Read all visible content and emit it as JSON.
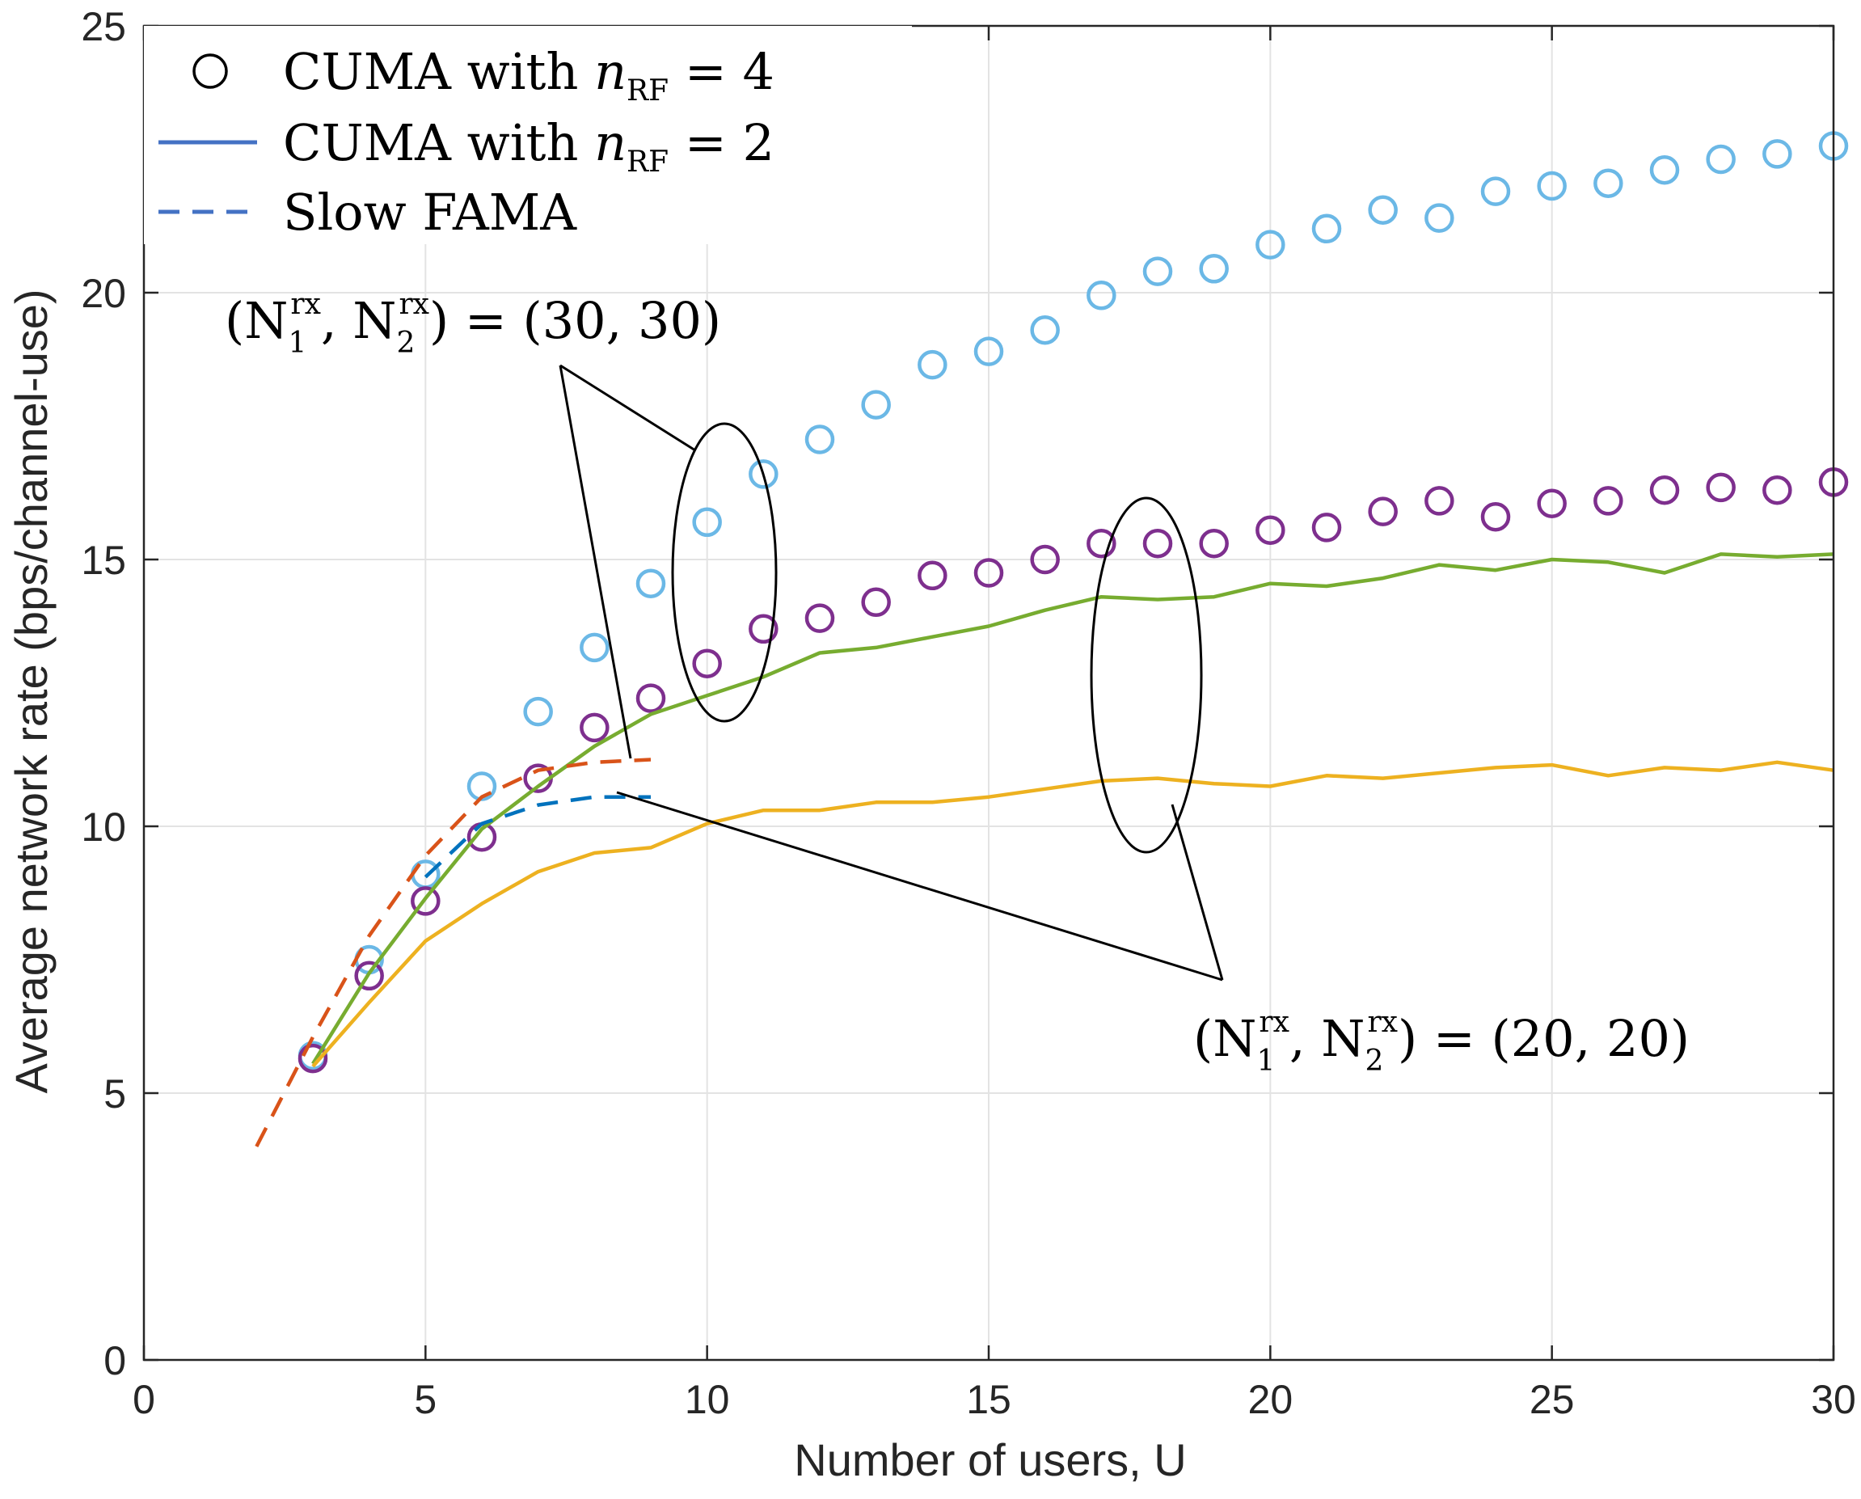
{
  "chart_data": {
    "type": "line",
    "xlabel": "Number of users, U",
    "ylabel": "Average network rate (bps/channel-use)",
    "xlim": [
      0,
      30
    ],
    "ylim": [
      0,
      25
    ],
    "xticks": [
      "0",
      "5",
      "10",
      "15",
      "20",
      "25",
      "30"
    ],
    "yticks": [
      "0",
      "5",
      "10",
      "15",
      "20",
      "25"
    ],
    "grid": true,
    "legend_position": "top-left",
    "legend": [
      {
        "label_main": "CUMA with ",
        "label_var": "n",
        "label_sub": "RF",
        "label_tail": " = 4",
        "marker": "circle",
        "color": "#000000"
      },
      {
        "label_main": "CUMA with ",
        "label_var": "n",
        "label_sub": "RF",
        "label_tail": " = 2",
        "marker": "solid-line",
        "color": "#4472C4"
      },
      {
        "label_main": "Slow FAMA",
        "label_var": "",
        "label_sub": "",
        "label_tail": "",
        "marker": "dashed-line",
        "color": "#4472C4"
      }
    ],
    "annotations": [
      {
        "text_open": "(N",
        "sub1": "1",
        "sup1": "rx",
        "text_mid": ", N",
        "sub2": "2",
        "sup2": "rx",
        "text_close": ") = (30, 30)"
      },
      {
        "text_open": "(N",
        "sub1": "1",
        "sup1": "rx",
        "text_mid": ", N",
        "sub2": "2",
        "sup2": "rx",
        "text_close": ") = (20, 20)"
      }
    ],
    "series": [
      {
        "kind": "markers",
        "color": "#6BB8E6",
        "x": [
          3,
          4,
          5,
          6,
          7,
          8,
          9,
          10,
          11,
          12,
          13,
          14,
          15,
          16,
          17,
          18,
          19,
          20,
          21,
          22,
          23,
          24,
          25,
          26,
          27,
          28,
          29,
          30
        ],
        "values": [
          5.7,
          7.5,
          9.1,
          10.75,
          12.15,
          13.35,
          14.55,
          15.7,
          16.6,
          17.25,
          17.9,
          18.65,
          18.9,
          19.3,
          19.95,
          20.4,
          20.45,
          20.9,
          21.2,
          21.55,
          21.4,
          21.9,
          22.0,
          22.05,
          22.3,
          22.5,
          22.6,
          22.75
        ]
      },
      {
        "kind": "markers",
        "color": "#7E2F8E",
        "x": [
          3,
          4,
          5,
          6,
          7,
          8,
          9,
          10,
          11,
          12,
          13,
          14,
          15,
          16,
          17,
          18,
          19,
          20,
          21,
          22,
          23,
          24,
          25,
          26,
          27,
          28,
          29,
          30
        ],
        "values": [
          5.65,
          7.2,
          8.6,
          9.8,
          10.9,
          11.85,
          12.4,
          13.05,
          13.7,
          13.9,
          14.2,
          14.7,
          14.75,
          15.0,
          15.3,
          15.3,
          15.3,
          15.55,
          15.6,
          15.9,
          16.1,
          15.8,
          16.05,
          16.1,
          16.3,
          16.35,
          16.3,
          16.45
        ]
      },
      {
        "kind": "line",
        "color": "#77AC30",
        "x": [
          3,
          4,
          5,
          6,
          7,
          8,
          9,
          10,
          11,
          12,
          13,
          14,
          15,
          16,
          17,
          18,
          19,
          20,
          21,
          22,
          23,
          24,
          25,
          26,
          27,
          28,
          29,
          30
        ],
        "values": [
          5.55,
          7.25,
          8.65,
          9.95,
          10.75,
          11.5,
          12.1,
          12.45,
          12.8,
          13.25,
          13.35,
          13.55,
          13.75,
          14.05,
          14.3,
          14.25,
          14.3,
          14.55,
          14.5,
          14.65,
          14.9,
          14.8,
          15.0,
          14.95,
          14.75,
          15.1,
          15.05,
          15.1
        ]
      },
      {
        "kind": "line",
        "color": "#EDB120",
        "x": [
          3,
          4,
          5,
          6,
          7,
          8,
          9,
          10,
          11,
          12,
          13,
          14,
          15,
          16,
          17,
          18,
          19,
          20,
          21,
          22,
          23,
          24,
          25,
          26,
          27,
          28,
          29,
          30
        ],
        "values": [
          5.5,
          6.7,
          7.85,
          8.55,
          9.15,
          9.5,
          9.6,
          10.05,
          10.3,
          10.3,
          10.45,
          10.45,
          10.55,
          10.7,
          10.85,
          10.9,
          10.8,
          10.75,
          10.95,
          10.9,
          11.0,
          11.1,
          11.15,
          10.95,
          11.1,
          11.05,
          11.2,
          11.05
        ]
      },
      {
        "kind": "dashed",
        "color": "#D95319",
        "x": [
          2,
          3,
          4,
          5,
          6,
          7,
          8,
          9
        ],
        "values": [
          4.0,
          6.05,
          7.95,
          9.45,
          10.55,
          11.05,
          11.2,
          11.25
        ]
      },
      {
        "kind": "dashed",
        "color": "#0072BD",
        "x": [
          5,
          6,
          7,
          8,
          9
        ],
        "values": [
          9.05,
          10.05,
          10.4,
          10.55,
          10.55
        ]
      }
    ]
  }
}
